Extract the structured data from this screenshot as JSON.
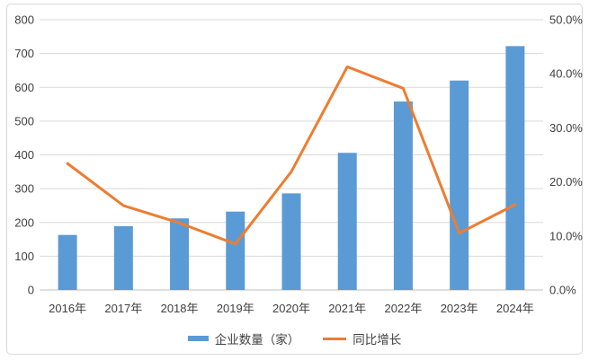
{
  "chart_data": {
    "type": "bar",
    "subtype": "combo-bar-line",
    "title": "",
    "categories": [
      "2016年",
      "2017年",
      "2018年",
      "2019年",
      "2020年",
      "2021年",
      "2022年",
      "2023年",
      "2024年"
    ],
    "series": [
      {
        "name": "企业数量（家）",
        "type": "bar",
        "axis": "left",
        "color": "#5b9bd5",
        "values": [
          163,
          189,
          212,
          232,
          286,
          406,
          558,
          620,
          722
        ]
      },
      {
        "name": "同比增长",
        "type": "line",
        "axis": "right",
        "color": "#ed7d31",
        "unit": "%",
        "values": [
          23.4,
          15.6,
          12.4,
          8.5,
          21.9,
          41.3,
          37.3,
          10.5,
          15.8
        ]
      }
    ],
    "left_axis": {
      "min": 0,
      "max": 800,
      "step": 100,
      "tick_labels": [
        "0",
        "100",
        "200",
        "300",
        "400",
        "500",
        "600",
        "700",
        "800"
      ]
    },
    "right_axis": {
      "min": 0,
      "max": 50,
      "step": 10,
      "tick_labels": [
        "0.0%",
        "10.0%",
        "20.0%",
        "30.0%",
        "40.0%",
        "50.0%"
      ]
    },
    "grid": true,
    "legend_position": "bottom"
  },
  "colors": {
    "gridline": "#d9d9d9",
    "axis_line": "#bfbfbf",
    "tick_text": "#404040",
    "frame_border": "#d8d8d8",
    "background": "#ffffff"
  }
}
